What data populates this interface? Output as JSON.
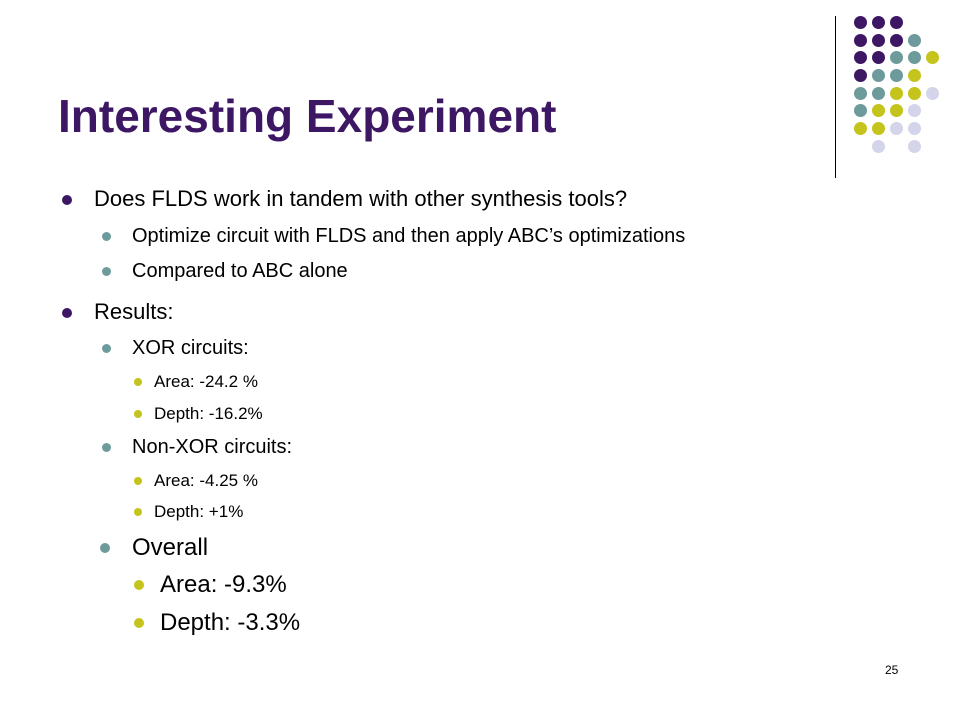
{
  "slide": {
    "title": "Interesting Experiment",
    "page_number": "25",
    "colors": {
      "title": "#3d1764",
      "purple": "#3d1764",
      "teal": "#6d9a9a",
      "olive": "#c4c41c",
      "lavender": "#d4d4ea"
    },
    "bullets": {
      "q": "Does FLDS work in tandem with other synthesis tools?",
      "q_sub1": "Optimize circuit with FLDS and then apply ABC’s optimizations",
      "q_sub2": "Compared to ABC alone",
      "results": "Results:",
      "xor": "XOR circuits:",
      "xor_area": "Area: -24.2 %",
      "xor_depth": "Depth: -16.2%",
      "nonxor": "Non-XOR circuits:",
      "nonxor_area": "Area: -4.25 %",
      "nonxor_depth": "Depth: +1%",
      "overall": "Overall",
      "overall_area": "Area: -9.3%",
      "overall_depth": "Depth: -3.3%"
    }
  }
}
